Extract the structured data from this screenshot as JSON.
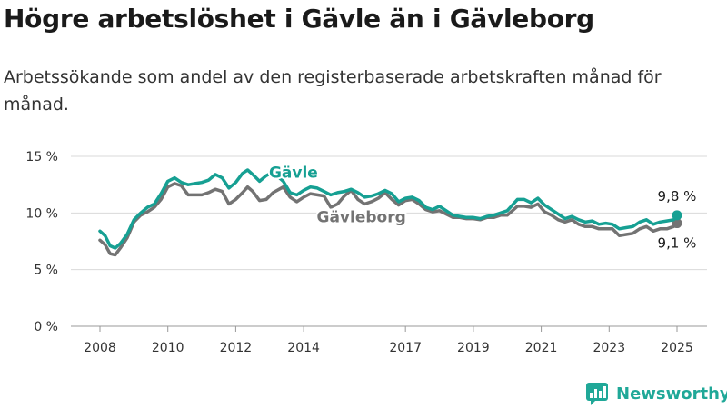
{
  "title": "Högre arbetslöshet i Gävle än i Gävleborg",
  "subtitle": "Arbetssökande som andel av den registerbaserade arbetskraften månad för månad.",
  "brand": {
    "name": "Newsworthy",
    "icon": "newsworthy-logo-icon"
  },
  "colors": {
    "gavle": "#16a093",
    "gavleborg": "#737373",
    "grid": "#d9d9d9"
  },
  "chart_data": {
    "type": "line",
    "title": "Högre arbetslöshet i Gävle än i Gävleborg",
    "ylabel": "",
    "xlabel": "",
    "ylim": [
      0,
      15
    ],
    "xlim": [
      2008,
      2025.1
    ],
    "yticks": [
      0,
      5,
      10,
      15
    ],
    "ytick_labels": [
      "0 %",
      "5 %",
      "10 %",
      "15 %"
    ],
    "xticks": [
      2008,
      2010,
      2012,
      2014,
      2017,
      2019,
      2021,
      2023,
      2025
    ],
    "xtick_labels": [
      "2008",
      "2010",
      "2012",
      "2014",
      "2017",
      "2019",
      "2021",
      "2023",
      "2025"
    ],
    "grid": true,
    "series": [
      {
        "name": "Gävleborg",
        "color": "#737373",
        "label_at": [
          2015.7,
          9.2
        ],
        "end_label": "9,1 %",
        "points": [
          [
            2008.0,
            7.6
          ],
          [
            2008.15,
            7.2
          ],
          [
            2008.3,
            6.4
          ],
          [
            2008.45,
            6.3
          ],
          [
            2008.6,
            6.9
          ],
          [
            2008.8,
            7.8
          ],
          [
            2009.0,
            9.2
          ],
          [
            2009.2,
            9.8
          ],
          [
            2009.4,
            10.1
          ],
          [
            2009.6,
            10.5
          ],
          [
            2009.8,
            11.2
          ],
          [
            2010.0,
            12.3
          ],
          [
            2010.2,
            12.6
          ],
          [
            2010.4,
            12.4
          ],
          [
            2010.6,
            11.6
          ],
          [
            2010.8,
            11.6
          ],
          [
            2011.0,
            11.6
          ],
          [
            2011.2,
            11.8
          ],
          [
            2011.4,
            12.1
          ],
          [
            2011.6,
            11.9
          ],
          [
            2011.8,
            10.8
          ],
          [
            2012.0,
            11.2
          ],
          [
            2012.2,
            11.8
          ],
          [
            2012.35,
            12.3
          ],
          [
            2012.5,
            11.9
          ],
          [
            2012.7,
            11.1
          ],
          [
            2012.9,
            11.2
          ],
          [
            2013.1,
            11.8
          ],
          [
            2013.4,
            12.3
          ],
          [
            2013.6,
            11.4
          ],
          [
            2013.8,
            11.0
          ],
          [
            2014.0,
            11.4
          ],
          [
            2014.2,
            11.7
          ],
          [
            2014.4,
            11.6
          ],
          [
            2014.6,
            11.5
          ],
          [
            2014.8,
            10.5
          ],
          [
            2015.0,
            10.8
          ],
          [
            2015.2,
            11.5
          ],
          [
            2015.4,
            12.0
          ],
          [
            2015.6,
            11.2
          ],
          [
            2015.8,
            10.8
          ],
          [
            2016.0,
            11.0
          ],
          [
            2016.2,
            11.3
          ],
          [
            2016.4,
            11.8
          ],
          [
            2016.6,
            11.2
          ],
          [
            2016.8,
            10.7
          ],
          [
            2017.0,
            11.1
          ],
          [
            2017.2,
            11.2
          ],
          [
            2017.4,
            10.8
          ],
          [
            2017.6,
            10.3
          ],
          [
            2017.8,
            10.1
          ],
          [
            2018.0,
            10.2
          ],
          [
            2018.2,
            9.9
          ],
          [
            2018.4,
            9.6
          ],
          [
            2018.6,
            9.6
          ],
          [
            2018.8,
            9.5
          ],
          [
            2019.0,
            9.5
          ],
          [
            2019.2,
            9.4
          ],
          [
            2019.4,
            9.6
          ],
          [
            2019.6,
            9.6
          ],
          [
            2019.8,
            9.8
          ],
          [
            2020.0,
            9.8
          ],
          [
            2020.3,
            10.6
          ],
          [
            2020.5,
            10.6
          ],
          [
            2020.7,
            10.5
          ],
          [
            2020.9,
            10.8
          ],
          [
            2021.1,
            10.1
          ],
          [
            2021.3,
            9.8
          ],
          [
            2021.5,
            9.4
          ],
          [
            2021.7,
            9.2
          ],
          [
            2021.9,
            9.4
          ],
          [
            2022.1,
            9.0
          ],
          [
            2022.3,
            8.8
          ],
          [
            2022.5,
            8.8
          ],
          [
            2022.7,
            8.6
          ],
          [
            2022.9,
            8.6
          ],
          [
            2023.1,
            8.6
          ],
          [
            2023.3,
            8.0
          ],
          [
            2023.5,
            8.1
          ],
          [
            2023.7,
            8.2
          ],
          [
            2023.9,
            8.6
          ],
          [
            2024.1,
            8.8
          ],
          [
            2024.3,
            8.4
          ],
          [
            2024.5,
            8.6
          ],
          [
            2024.7,
            8.6
          ],
          [
            2024.9,
            8.8
          ],
          [
            2025.0,
            9.1
          ]
        ]
      },
      {
        "name": "Gävle",
        "color": "#16a093",
        "label_at": [
          2013.7,
          13.1
        ],
        "end_label": "9,8 %",
        "points": [
          [
            2008.0,
            8.4
          ],
          [
            2008.15,
            8.0
          ],
          [
            2008.3,
            7.1
          ],
          [
            2008.45,
            6.9
          ],
          [
            2008.6,
            7.3
          ],
          [
            2008.8,
            8.1
          ],
          [
            2009.0,
            9.4
          ],
          [
            2009.2,
            10.0
          ],
          [
            2009.4,
            10.5
          ],
          [
            2009.6,
            10.8
          ],
          [
            2009.8,
            11.7
          ],
          [
            2010.0,
            12.8
          ],
          [
            2010.2,
            13.1
          ],
          [
            2010.4,
            12.7
          ],
          [
            2010.6,
            12.5
          ],
          [
            2010.8,
            12.6
          ],
          [
            2011.0,
            12.7
          ],
          [
            2011.2,
            12.9
          ],
          [
            2011.4,
            13.4
          ],
          [
            2011.6,
            13.1
          ],
          [
            2011.8,
            12.2
          ],
          [
            2012.0,
            12.7
          ],
          [
            2012.2,
            13.5
          ],
          [
            2012.35,
            13.8
          ],
          [
            2012.5,
            13.4
          ],
          [
            2012.7,
            12.8
          ],
          [
            2012.9,
            13.3
          ],
          [
            2013.1,
            13.6
          ],
          [
            2013.4,
            12.8
          ],
          [
            2013.6,
            11.8
          ],
          [
            2013.8,
            11.6
          ],
          [
            2014.0,
            12.0
          ],
          [
            2014.2,
            12.3
          ],
          [
            2014.4,
            12.2
          ],
          [
            2014.6,
            11.9
          ],
          [
            2014.8,
            11.6
          ],
          [
            2015.0,
            11.8
          ],
          [
            2015.2,
            11.9
          ],
          [
            2015.4,
            12.1
          ],
          [
            2015.6,
            11.8
          ],
          [
            2015.8,
            11.4
          ],
          [
            2016.0,
            11.5
          ],
          [
            2016.2,
            11.7
          ],
          [
            2016.4,
            12.0
          ],
          [
            2016.6,
            11.7
          ],
          [
            2016.8,
            11.0
          ],
          [
            2017.0,
            11.3
          ],
          [
            2017.2,
            11.4
          ],
          [
            2017.4,
            11.1
          ],
          [
            2017.6,
            10.5
          ],
          [
            2017.8,
            10.3
          ],
          [
            2018.0,
            10.6
          ],
          [
            2018.2,
            10.2
          ],
          [
            2018.4,
            9.8
          ],
          [
            2018.6,
            9.7
          ],
          [
            2018.8,
            9.6
          ],
          [
            2019.0,
            9.6
          ],
          [
            2019.2,
            9.5
          ],
          [
            2019.4,
            9.7
          ],
          [
            2019.6,
            9.8
          ],
          [
            2019.8,
            10.0
          ],
          [
            2020.0,
            10.2
          ],
          [
            2020.3,
            11.2
          ],
          [
            2020.5,
            11.2
          ],
          [
            2020.7,
            10.9
          ],
          [
            2020.9,
            11.3
          ],
          [
            2021.1,
            10.7
          ],
          [
            2021.3,
            10.3
          ],
          [
            2021.5,
            9.9
          ],
          [
            2021.7,
            9.5
          ],
          [
            2021.9,
            9.7
          ],
          [
            2022.1,
            9.4
          ],
          [
            2022.3,
            9.2
          ],
          [
            2022.5,
            9.3
          ],
          [
            2022.7,
            9.0
          ],
          [
            2022.9,
            9.1
          ],
          [
            2023.1,
            9.0
          ],
          [
            2023.3,
            8.6
          ],
          [
            2023.5,
            8.7
          ],
          [
            2023.7,
            8.8
          ],
          [
            2023.9,
            9.2
          ],
          [
            2024.1,
            9.4
          ],
          [
            2024.3,
            9.0
          ],
          [
            2024.5,
            9.2
          ],
          [
            2024.7,
            9.3
          ],
          [
            2024.9,
            9.4
          ],
          [
            2025.0,
            9.8
          ]
        ]
      }
    ]
  }
}
